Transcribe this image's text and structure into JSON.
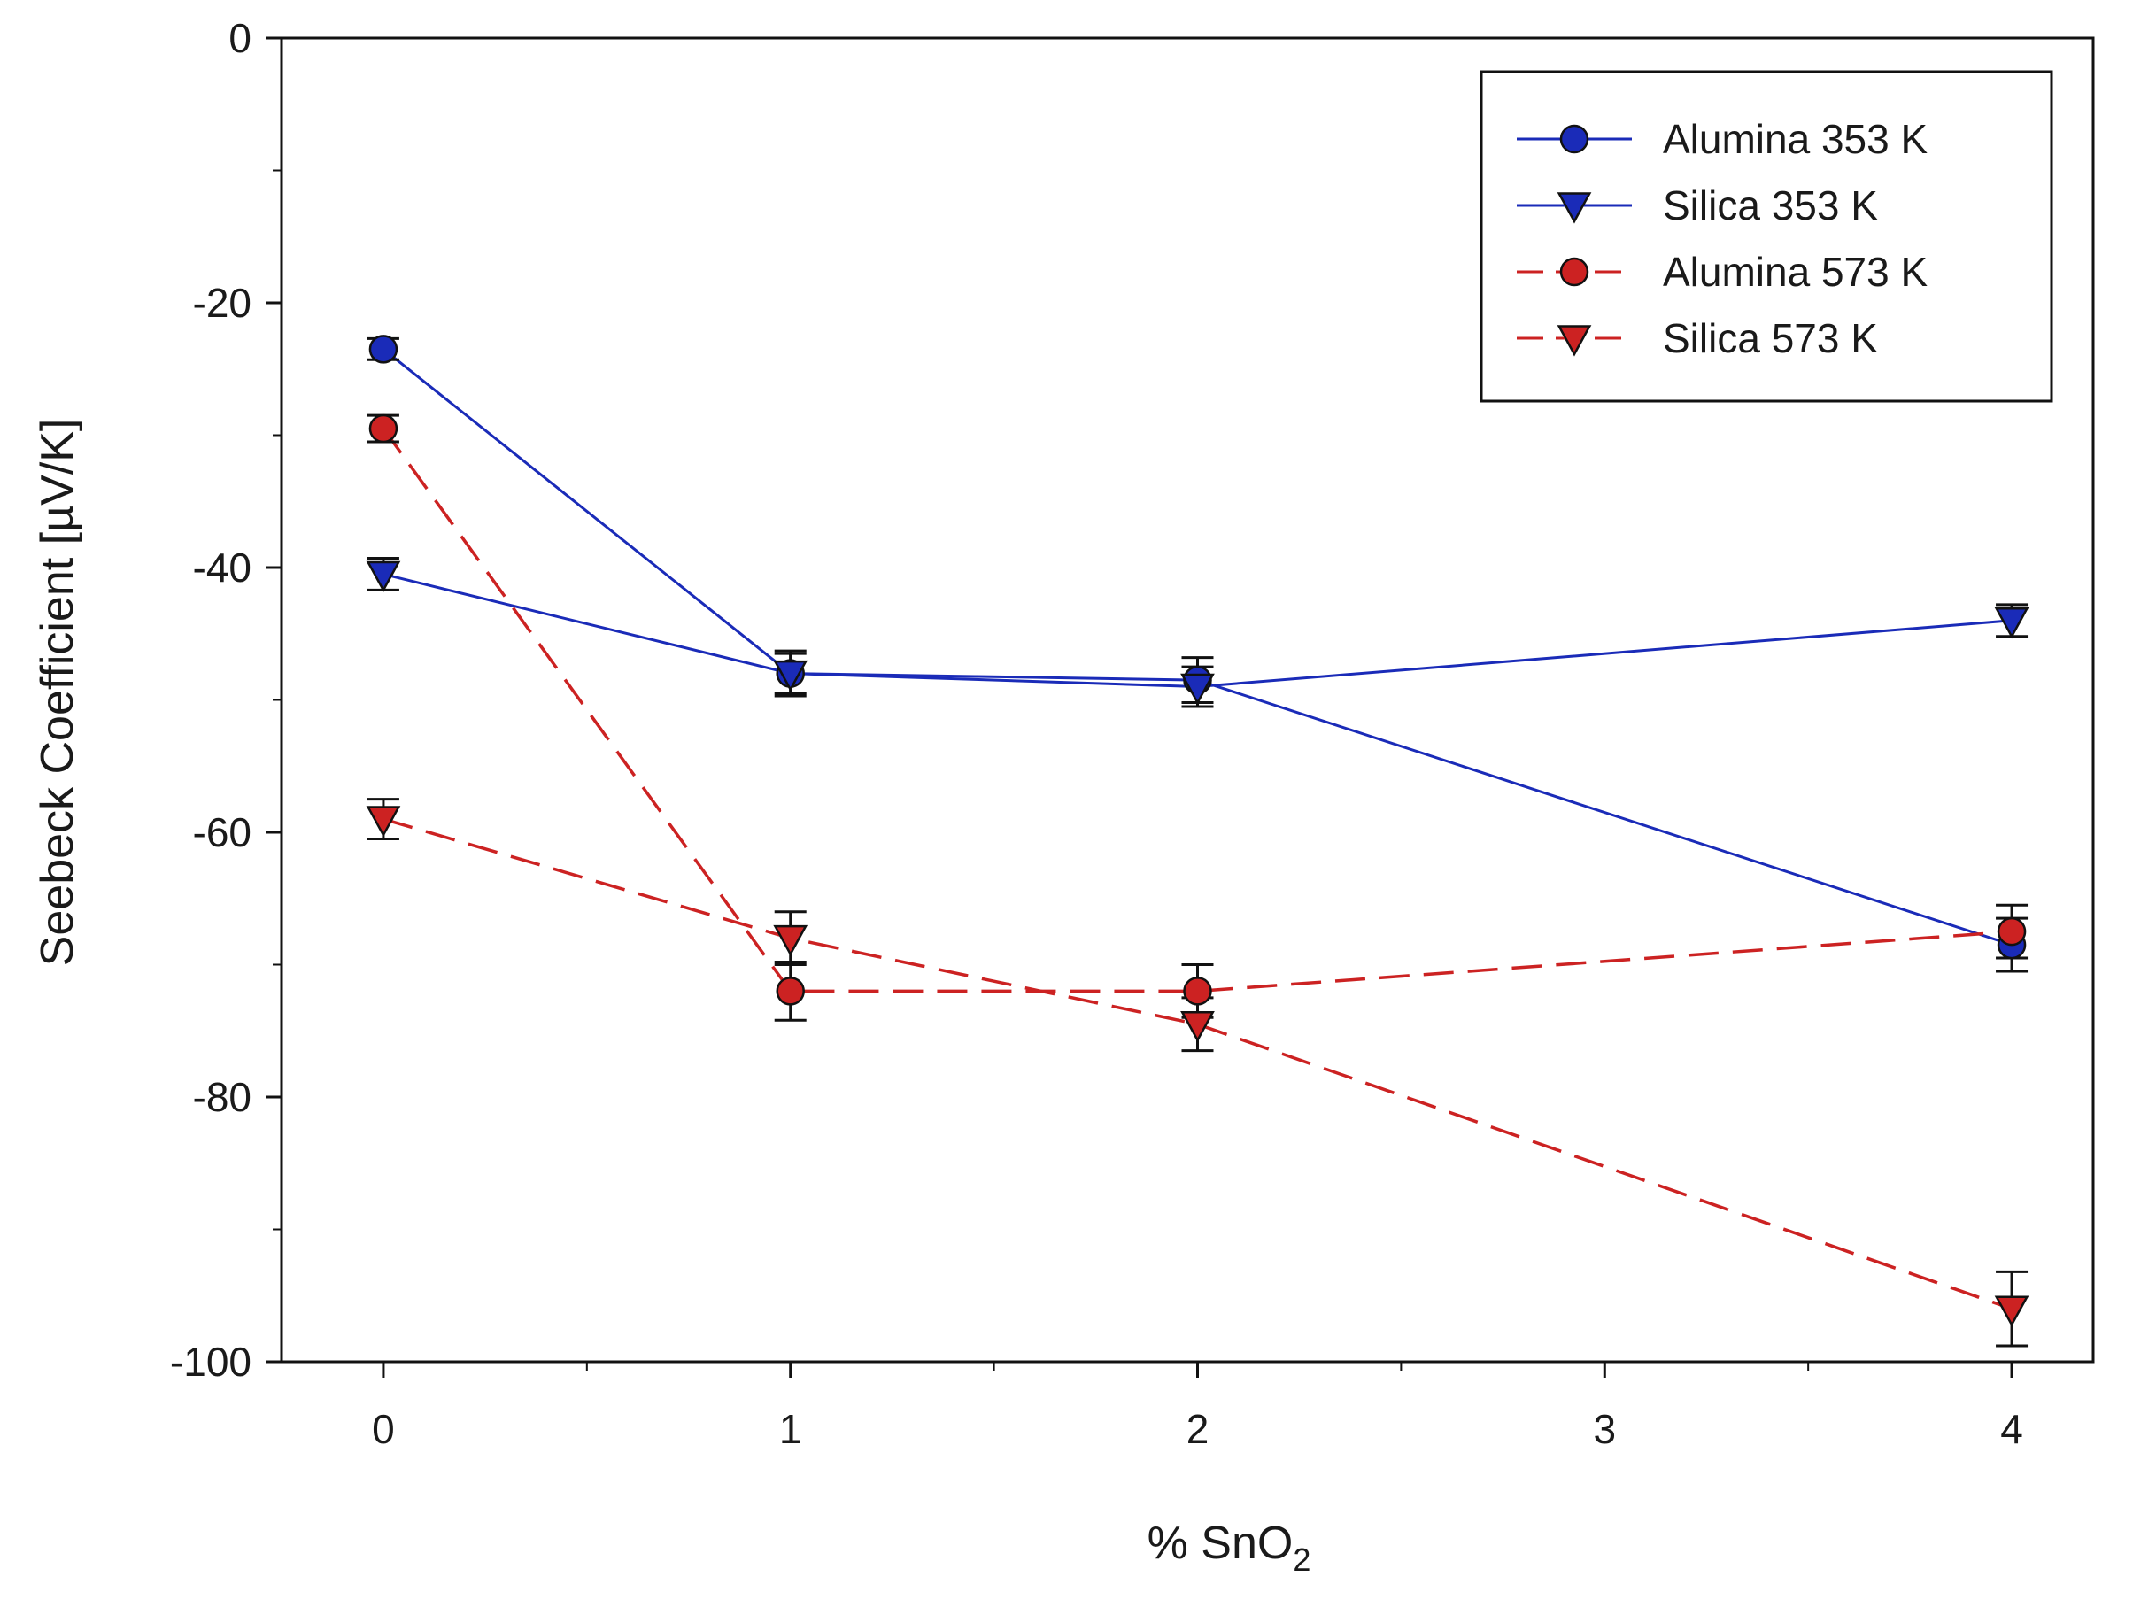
{
  "chart_data": {
    "type": "line",
    "title": "",
    "xlabel": "% SnO",
    "xlabel_subscript": "2",
    "ylabel": "Seebeck Coefficient [µV/K]",
    "xlim": [
      -0.25,
      4.2
    ],
    "ylim": [
      -100,
      0
    ],
    "x_ticks": [
      0,
      1,
      2,
      3,
      4
    ],
    "y_ticks": [
      0,
      -20,
      -40,
      -60,
      -80,
      -100
    ],
    "x_tick_labels": [
      "0",
      "1",
      "2",
      "3",
      "4"
    ],
    "y_tick_labels": [
      "0",
      "-20",
      "-40",
      "-60",
      "-80",
      "-100"
    ],
    "grid": false,
    "legend_position": "top-right",
    "x": [
      0,
      1,
      2,
      4
    ],
    "series": [
      {
        "name": "Alumina 353 K",
        "values": [
          -23.5,
          -48,
          -48.5,
          -68.5
        ],
        "errors": [
          0.8,
          1.5,
          1.7,
          2.0
        ],
        "color": "#1a2bb8",
        "marker": "circle",
        "line_style": "solid"
      },
      {
        "name": "Silica 353 K",
        "values": [
          -40.5,
          -48,
          -49,
          -44
        ],
        "errors": [
          1.2,
          1.7,
          1.5,
          1.2
        ],
        "color": "#1a2bb8",
        "marker": "triangle-down",
        "line_style": "solid"
      },
      {
        "name": "Alumina 573 K",
        "values": [
          -29.5,
          -72,
          -72,
          -67.5
        ],
        "errors": [
          1.0,
          2.2,
          2.0,
          2.0
        ],
        "color": "#cc2222",
        "marker": "circle",
        "line_style": "dashed"
      },
      {
        "name": "Silica 573 K",
        "values": [
          -59,
          -68,
          -74.5,
          -96
        ],
        "errors": [
          1.5,
          2.0,
          2.0,
          2.8
        ],
        "color": "#cc2222",
        "marker": "triangle-down",
        "line_style": "dashed"
      }
    ]
  }
}
